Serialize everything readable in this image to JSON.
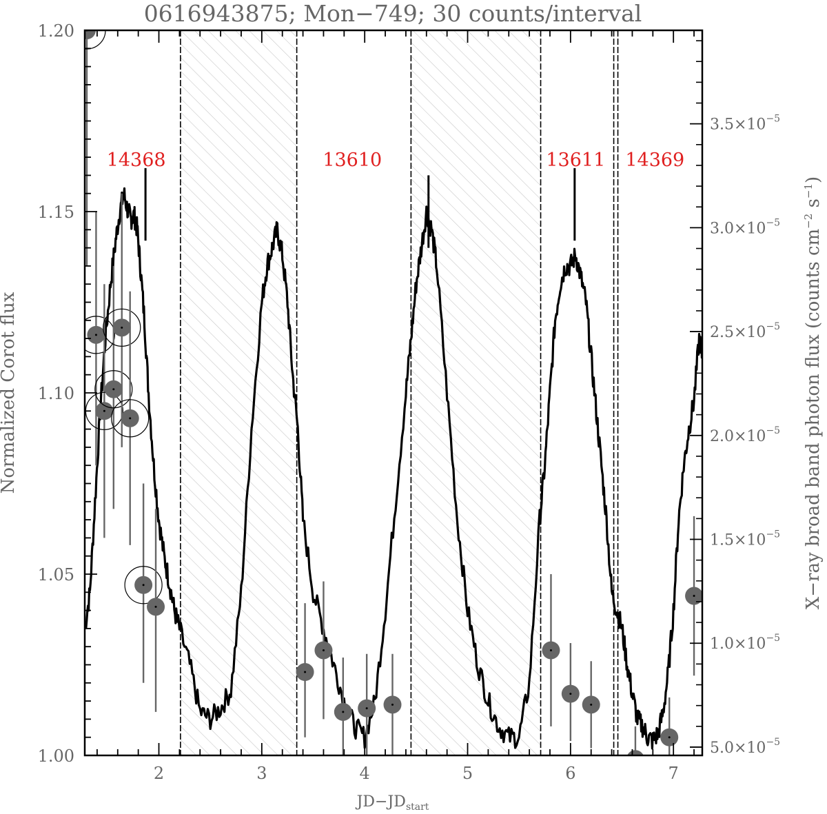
{
  "chart_data": {
    "type": "line",
    "title": "0616943875; Mon−749; 30 counts/interval",
    "xlabel_main": "JD−JD",
    "xlabel_sub": "start",
    "ylabel_left": "Normalized Corot flux",
    "ylabel_right_main": "X−ray broad band photon flux (counts cm",
    "ylabel_right_sup1": "−2",
    "ylabel_right_mid": " s",
    "ylabel_right_sup2": "−1",
    "ylabel_right_end": ")",
    "xlim": [
      1.28,
      7.28
    ],
    "ylim_left": [
      1.0,
      1.2
    ],
    "ylim_right": [
      4.6e-06,
      3.95e-05
    ],
    "x_ticks": [
      2,
      3,
      4,
      5,
      6,
      7
    ],
    "y_ticks_left": [
      "1.00",
      "1.05",
      "1.10",
      "1.15",
      "1.20"
    ],
    "y_ticks_right": [
      {
        "mant": "5.0",
        "value": 5e-06
      },
      {
        "mant": "1.0",
        "value": 1e-05
      },
      {
        "mant": "1.5",
        "value": 1.5e-05
      },
      {
        "mant": "2.0",
        "value": 2e-05
      },
      {
        "mant": "2.5",
        "value": 2.5e-05
      },
      {
        "mant": "3.0",
        "value": 3e-05
      },
      {
        "mant": "3.5",
        "value": 3.5e-05
      }
    ],
    "y_ticks_right_times": "×10",
    "y_ticks_right_exp": "−5",
    "obsid_labels": [
      {
        "text": "14368",
        "x": 1.78
      },
      {
        "text": "13610",
        "x": 3.88
      },
      {
        "text": "13611",
        "x": 6.05
      },
      {
        "text": "14369",
        "x": 6.82
      }
    ],
    "hatched_gaps": [
      [
        2.21,
        3.34
      ],
      [
        4.45,
        5.71
      ]
    ],
    "segment_boundaries": [
      2.21,
      3.34,
      4.45,
      5.71,
      6.42,
      6.46
    ],
    "corot_lightcurve": {
      "name": "Normalized Corot flux",
      "x": [
        1.28,
        1.33,
        1.38,
        1.43,
        1.48,
        1.53,
        1.58,
        1.62,
        1.66,
        1.7,
        1.73,
        1.76,
        1.79,
        1.82,
        1.86,
        1.9,
        1.95,
        2.0,
        2.05,
        2.1,
        2.15,
        2.2,
        2.3,
        2.4,
        2.5,
        2.6,
        2.7,
        2.8,
        2.9,
        3.0,
        3.05,
        3.1,
        3.15,
        3.2,
        3.25,
        3.3,
        3.35,
        3.4,
        3.5,
        3.6,
        3.7,
        3.8,
        3.9,
        4.0,
        4.1,
        4.2,
        4.3,
        4.4,
        4.45,
        4.5,
        4.55,
        4.6,
        4.65,
        4.7,
        4.8,
        4.9,
        5.0,
        5.1,
        5.2,
        5.3,
        5.4,
        5.5,
        5.6,
        5.7,
        5.75,
        5.8,
        5.85,
        5.9,
        5.95,
        6.0,
        6.05,
        6.1,
        6.15,
        6.2,
        6.25,
        6.3,
        6.35,
        6.4,
        6.45,
        6.5,
        6.55,
        6.6,
        6.65,
        6.7,
        6.75,
        6.8,
        6.85,
        6.9,
        6.95,
        7.0,
        7.05,
        7.1,
        7.15,
        7.2,
        7.25,
        7.28
      ],
      "y": [
        1.035,
        1.045,
        1.07,
        1.095,
        1.115,
        1.13,
        1.142,
        1.15,
        1.155,
        1.15,
        1.148,
        1.149,
        1.145,
        1.135,
        1.12,
        1.1,
        1.08,
        1.065,
        1.055,
        1.048,
        1.04,
        1.035,
        1.025,
        1.012,
        1.01,
        1.013,
        1.018,
        1.045,
        1.09,
        1.125,
        1.135,
        1.14,
        1.145,
        1.138,
        1.125,
        1.105,
        1.09,
        1.065,
        1.045,
        1.035,
        1.025,
        1.015,
        1.008,
        1.005,
        1.015,
        1.04,
        1.07,
        1.1,
        1.115,
        1.13,
        1.14,
        1.15,
        1.145,
        1.135,
        1.1,
        1.065,
        1.04,
        1.025,
        1.015,
        1.008,
        1.005,
        1.005,
        1.02,
        1.065,
        1.08,
        1.1,
        1.12,
        1.13,
        1.135,
        1.135,
        1.138,
        1.132,
        1.125,
        1.11,
        1.095,
        1.08,
        1.065,
        1.045,
        1.04,
        1.035,
        1.025,
        1.017,
        1.01,
        1.008,
        1.005,
        1.004,
        1.006,
        1.012,
        1.023,
        1.04,
        1.065,
        1.08,
        1.09,
        1.098,
        1.115,
        1.11
      ]
    },
    "corot_spikes": [
      {
        "x": 1.87,
        "y": 1.162
      },
      {
        "x": 6.04,
        "y": 1.162
      },
      {
        "x": 4.62,
        "y": 1.16
      }
    ],
    "xray_points": {
      "name": "X-ray broad band photon flux",
      "points": [
        {
          "x": 1.3,
          "y": 1.2,
          "lo": 1.135,
          "hi": 1.2,
          "circled": true
        },
        {
          "x": 1.39,
          "y": 1.116,
          "lo": 1.08,
          "hi": 1.15,
          "circled": true
        },
        {
          "x": 1.47,
          "y": 1.095,
          "lo": 1.06,
          "hi": 1.13,
          "circled": true
        },
        {
          "x": 1.56,
          "y": 1.101,
          "lo": 1.068,
          "hi": 1.135,
          "circled": true
        },
        {
          "x": 1.64,
          "y": 1.118,
          "lo": 1.085,
          "hi": 1.155,
          "circled": true
        },
        {
          "x": 1.72,
          "y": 1.093,
          "lo": 1.058,
          "hi": 1.128,
          "circled": true
        },
        {
          "x": 1.85,
          "y": 1.047,
          "lo": 1.02,
          "hi": 1.075,
          "circled": true
        },
        {
          "x": 1.97,
          "y": 1.041,
          "lo": 1.012,
          "hi": 1.068,
          "circled": false
        },
        {
          "x": 3.42,
          "y": 1.023,
          "lo": 1.005,
          "hi": 1.042,
          "circled": false
        },
        {
          "x": 3.6,
          "y": 1.029,
          "lo": 1.01,
          "hi": 1.048,
          "circled": false
        },
        {
          "x": 3.79,
          "y": 1.012,
          "lo": 0.998,
          "hi": 1.027,
          "circled": false
        },
        {
          "x": 4.02,
          "y": 1.013,
          "lo": 0.999,
          "hi": 1.028,
          "circled": false
        },
        {
          "x": 4.27,
          "y": 1.014,
          "lo": 1.0,
          "hi": 1.028,
          "circled": false
        },
        {
          "x": 5.81,
          "y": 1.029,
          "lo": 1.008,
          "hi": 1.05,
          "circled": false
        },
        {
          "x": 6.0,
          "y": 1.017,
          "lo": 1.004,
          "hi": 1.031,
          "circled": false
        },
        {
          "x": 6.2,
          "y": 1.014,
          "lo": 1.002,
          "hi": 1.026,
          "circled": false
        },
        {
          "x": 6.63,
          "y": 0.999,
          "lo": 0.99,
          "hi": 1.008,
          "circled": false
        },
        {
          "x": 6.96,
          "y": 1.005,
          "lo": 0.995,
          "hi": 1.016,
          "circled": false
        },
        {
          "x": 7.2,
          "y": 1.044,
          "lo": 1.022,
          "hi": 1.066,
          "circled": false
        }
      ]
    },
    "colors": {
      "curve": "#000000",
      "points": "#666666",
      "obsid": "#e02020",
      "hatch": "#c8c8c8"
    }
  }
}
